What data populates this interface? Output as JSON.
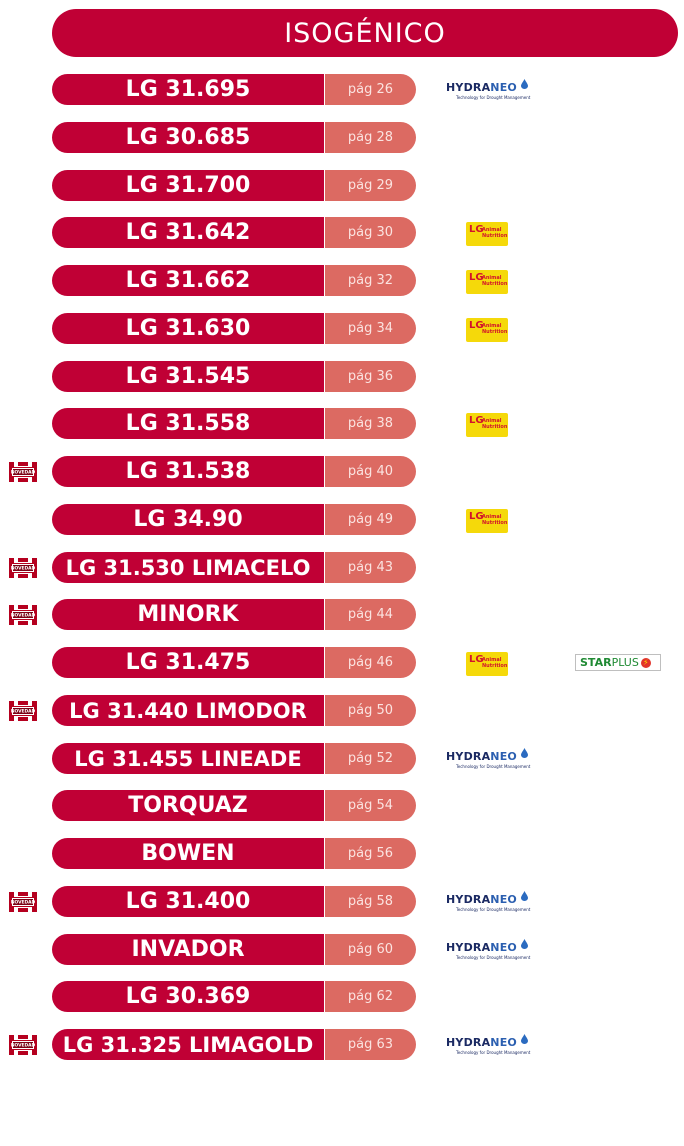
{
  "header": {
    "title": "ISOGÉNICO"
  },
  "badges": {
    "novedad": "NOVEDAD",
    "hydraneo_main": "HYDRANEO",
    "hydraneo_tagline": "Technology for Drought Management",
    "animal_lg": "LG",
    "animal_sub": "Animal Nutrition",
    "starplus": "STARPLUS"
  },
  "colors": {
    "primary": "#c00035",
    "page_pill": "#dc6a62"
  },
  "varieties": [
    {
      "name": "LG 31.695",
      "page": "pág 26",
      "novedad": false,
      "logos": [
        "hydraneo"
      ]
    },
    {
      "name": "LG 30.685",
      "page": "pág 28",
      "novedad": false,
      "logos": []
    },
    {
      "name": "LG 31.700",
      "page": "pág 29",
      "novedad": false,
      "logos": []
    },
    {
      "name": "LG 31.642",
      "page": "pág 30",
      "novedad": false,
      "logos": [
        "animal-nutrition"
      ]
    },
    {
      "name": "LG 31.662",
      "page": "pág 32",
      "novedad": false,
      "logos": [
        "animal-nutrition"
      ]
    },
    {
      "name": "LG 31.630",
      "page": "pág 34",
      "novedad": false,
      "logos": [
        "animal-nutrition"
      ]
    },
    {
      "name": "LG 31.545",
      "page": "pág 36",
      "novedad": false,
      "logos": []
    },
    {
      "name": "LG 31.558",
      "page": "pág 38",
      "novedad": false,
      "logos": [
        "animal-nutrition"
      ]
    },
    {
      "name": "LG 31.538",
      "page": "pág 40",
      "novedad": true,
      "logos": []
    },
    {
      "name": "LG 34.90",
      "page": "pág 49",
      "novedad": false,
      "logos": [
        "animal-nutrition"
      ]
    },
    {
      "name": "LG 31.530 LIMACELO",
      "page": "pág 43",
      "novedad": true,
      "logos": []
    },
    {
      "name": "MINORK",
      "page": "pág 44",
      "novedad": true,
      "logos": []
    },
    {
      "name": "LG 31.475",
      "page": "pág 46",
      "novedad": false,
      "logos": [
        "animal-nutrition",
        "starplus"
      ]
    },
    {
      "name": "LG 31.440 LIMODOR",
      "page": "pág 50",
      "novedad": true,
      "logos": []
    },
    {
      "name": "LG 31.455 LINEADE",
      "page": "pág 52",
      "novedad": false,
      "logos": [
        "hydraneo"
      ]
    },
    {
      "name": "TORQUAZ",
      "page": "pág 54",
      "novedad": false,
      "logos": []
    },
    {
      "name": "BOWEN",
      "page": "pág 56",
      "novedad": false,
      "logos": []
    },
    {
      "name": "LG 31.400",
      "page": "pág 58",
      "novedad": true,
      "logos": [
        "hydraneo"
      ]
    },
    {
      "name": "INVADOR",
      "page": "pág 60",
      "novedad": false,
      "logos": [
        "hydraneo"
      ]
    },
    {
      "name": "LG 30.369",
      "page": "pág 62",
      "novedad": false,
      "logos": []
    },
    {
      "name": "LG 31.325 LIMAGOLD",
      "page": "pág 63",
      "novedad": true,
      "logos": [
        "hydraneo"
      ]
    }
  ]
}
